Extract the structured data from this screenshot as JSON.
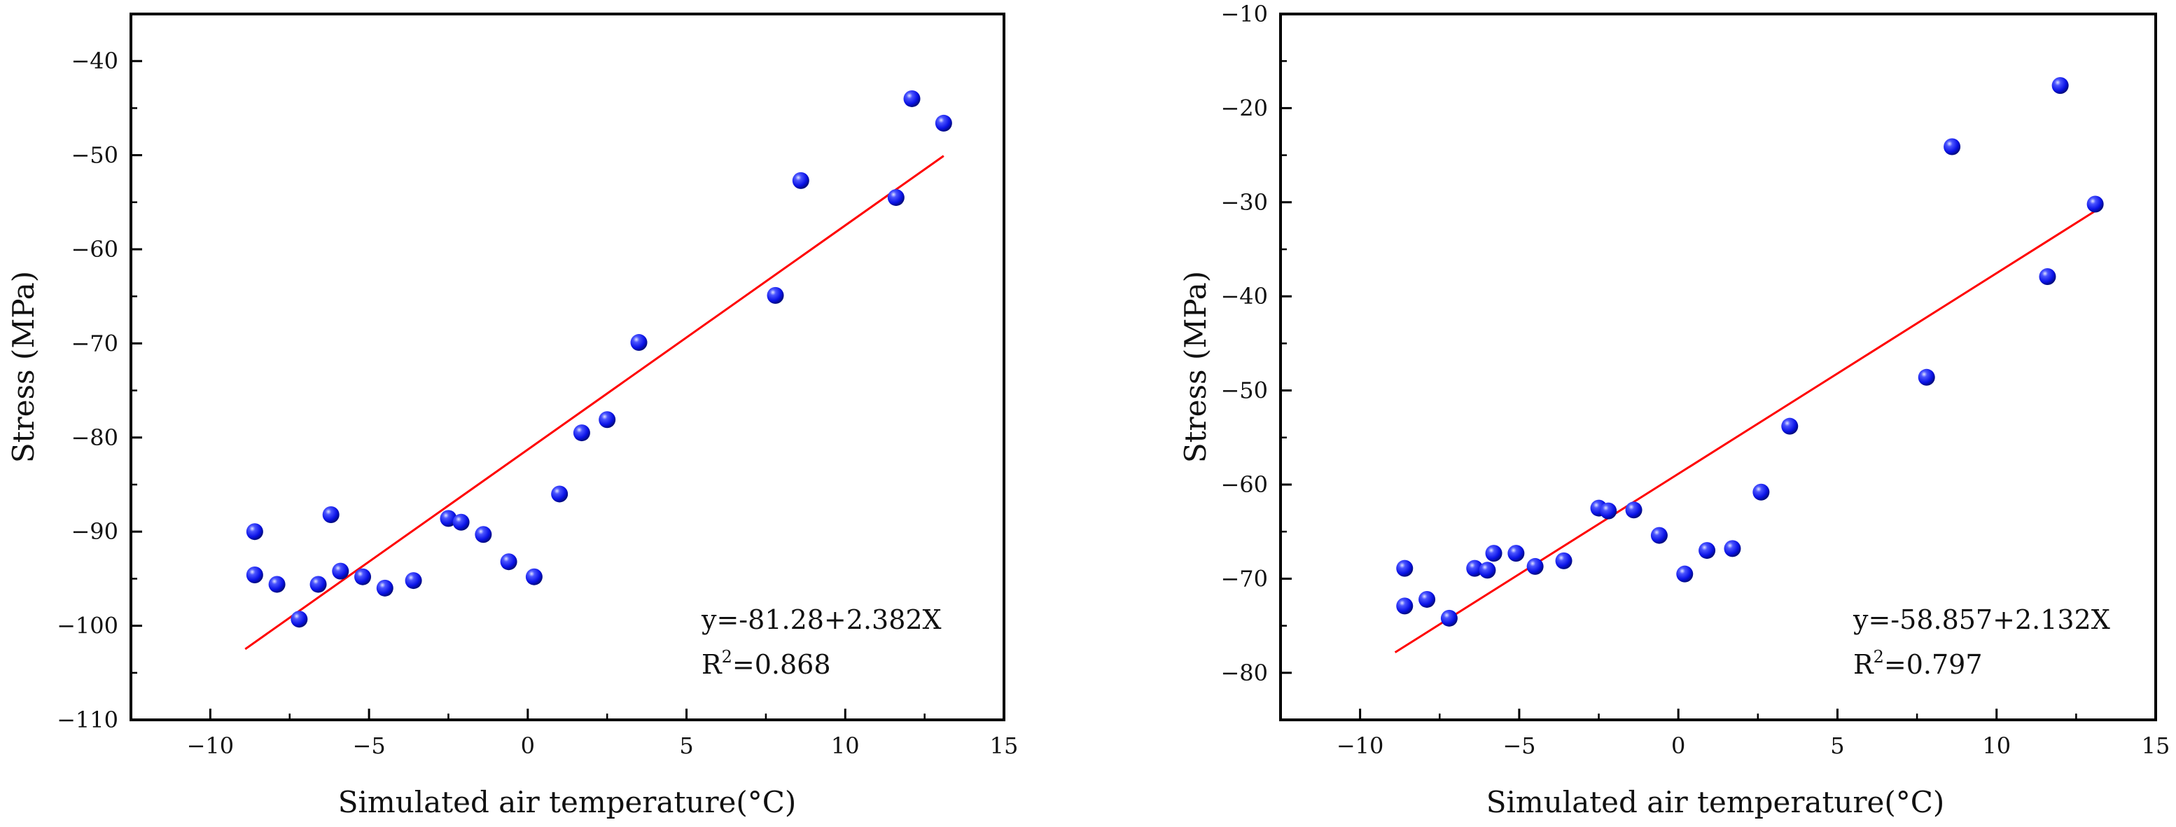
{
  "chart_data": [
    {
      "type": "scatter",
      "name": "left",
      "xlabel": "Simulated air temperature(°C)",
      "ylabel": "Stress (MPa)",
      "xlim": [
        -12.5,
        15
      ],
      "ylim": [
        -110,
        -35
      ],
      "xticks": [
        -10,
        -5,
        0,
        5,
        10,
        15
      ],
      "xtick_labels": [
        "−10",
        "−5",
        "0",
        "5",
        "10",
        "15"
      ],
      "yticks": [
        -110,
        -100,
        -90,
        -80,
        -70,
        -60,
        -50,
        -40
      ],
      "ytick_labels": [
        "−110",
        "−100",
        "−90",
        "−80",
        "−70",
        "−60",
        "−50",
        "−40"
      ],
      "points": [
        {
          "x": -8.6,
          "y": -90.0
        },
        {
          "x": -8.6,
          "y": -94.6
        },
        {
          "x": -7.9,
          "y": -95.6
        },
        {
          "x": -7.2,
          "y": -99.3
        },
        {
          "x": -6.2,
          "y": -88.2
        },
        {
          "x": -6.6,
          "y": -95.6
        },
        {
          "x": -5.9,
          "y": -94.2
        },
        {
          "x": -5.2,
          "y": -94.8
        },
        {
          "x": -4.5,
          "y": -96.0
        },
        {
          "x": -3.6,
          "y": -95.2
        },
        {
          "x": -2.5,
          "y": -88.6
        },
        {
          "x": -2.1,
          "y": -89.0
        },
        {
          "x": -1.4,
          "y": -90.3
        },
        {
          "x": -0.6,
          "y": -93.2
        },
        {
          "x": 0.2,
          "y": -94.8
        },
        {
          "x": 1.0,
          "y": -86.0
        },
        {
          "x": 1.7,
          "y": -79.5
        },
        {
          "x": 2.5,
          "y": -78.1
        },
        {
          "x": 3.5,
          "y": -69.9
        },
        {
          "x": 7.8,
          "y": -64.9
        },
        {
          "x": 8.6,
          "y": -52.7
        },
        {
          "x": 11.6,
          "y": -54.5
        },
        {
          "x": 12.1,
          "y": -44.0
        },
        {
          "x": 13.1,
          "y": -46.6
        }
      ],
      "fit": {
        "intercept": -81.28,
        "slope": 2.382,
        "x_range": [
          -8.9,
          13.1
        ],
        "color": "#ff0000"
      },
      "equation": "y=-81.28+2.382X",
      "r2_prefix": "R",
      "r2_sup": "2",
      "r2_value": "=0.868",
      "marker_color": "#0a12e6"
    },
    {
      "type": "scatter",
      "name": "right",
      "xlabel": "Simulated air temperature(°C)",
      "ylabel": "Stress (MPa)",
      "xlim": [
        -12.5,
        15
      ],
      "ylim": [
        -85,
        -10
      ],
      "xticks": [
        -10,
        -5,
        0,
        5,
        10,
        15
      ],
      "xtick_labels": [
        "−10",
        "−5",
        "0",
        "5",
        "10",
        "15"
      ],
      "yticks": [
        -80,
        -70,
        -60,
        -50,
        -40,
        -30,
        -20,
        -10
      ],
      "ytick_labels": [
        "−80",
        "−70",
        "−60",
        "−50",
        "−40",
        "−30",
        "−20",
        "−10"
      ],
      "points": [
        {
          "x": -8.6,
          "y": -68.9
        },
        {
          "x": -8.6,
          "y": -72.9
        },
        {
          "x": -7.9,
          "y": -72.2
        },
        {
          "x": -7.2,
          "y": -74.2
        },
        {
          "x": -6.4,
          "y": -68.9
        },
        {
          "x": -6.0,
          "y": -69.1
        },
        {
          "x": -5.8,
          "y": -67.3
        },
        {
          "x": -5.1,
          "y": -67.3
        },
        {
          "x": -4.5,
          "y": -68.7
        },
        {
          "x": -3.6,
          "y": -68.1
        },
        {
          "x": -2.5,
          "y": -62.5
        },
        {
          "x": -2.2,
          "y": -62.8
        },
        {
          "x": -1.4,
          "y": -62.7
        },
        {
          "x": -0.6,
          "y": -65.4
        },
        {
          "x": 0.2,
          "y": -69.5
        },
        {
          "x": 0.9,
          "y": -67.0
        },
        {
          "x": 1.7,
          "y": -66.8
        },
        {
          "x": 2.6,
          "y": -60.8
        },
        {
          "x": 3.5,
          "y": -53.8
        },
        {
          "x": 7.8,
          "y": -48.6
        },
        {
          "x": 8.6,
          "y": -24.1
        },
        {
          "x": 11.6,
          "y": -37.9
        },
        {
          "x": 12.0,
          "y": -17.6
        },
        {
          "x": 13.1,
          "y": -30.2
        }
      ],
      "fit": {
        "intercept": -58.857,
        "slope": 2.132,
        "x_range": [
          -8.9,
          13.1
        ],
        "color": "#ff0000"
      },
      "equation": "y=-58.857+2.132X",
      "r2_prefix": "R",
      "r2_sup": "2",
      "r2_value": "=0.797",
      "marker_color": "#0a12e6"
    }
  ]
}
